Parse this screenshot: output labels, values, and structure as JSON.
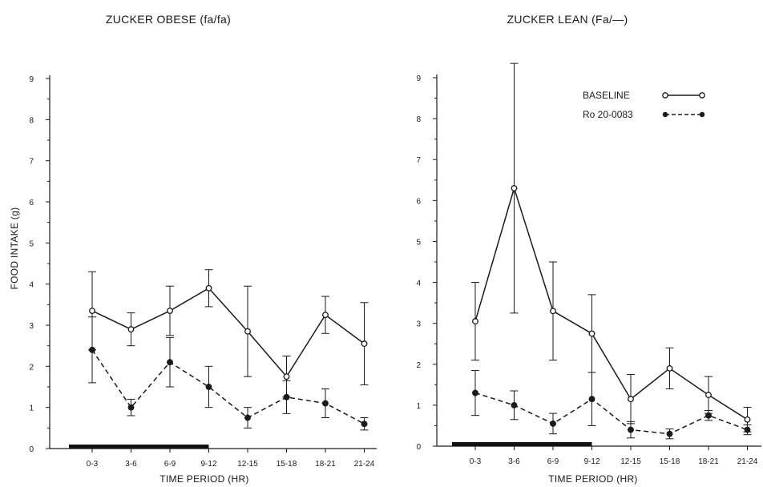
{
  "chart_data": [
    {
      "type": "line",
      "title": "ZUCKER OBESE (fa/fa)",
      "xlabel": "TIME PERIOD (HR)",
      "ylabel": "FOOD INTAKE (g)",
      "ylim": [
        0,
        9
      ],
      "y_ticks": [
        "0",
        "1",
        "2",
        "3",
        "4",
        "5",
        "6",
        "7",
        "8",
        "9"
      ],
      "categories": [
        "0-3",
        "3-6",
        "6-9",
        "9-12",
        "12-15",
        "15-18",
        "18-21",
        "21-24"
      ],
      "dark_period_bar": [
        "0-3",
        "9-12"
      ],
      "series": [
        {
          "name": "BASELINE",
          "style": "solid-open-circle",
          "values": [
            3.35,
            2.9,
            3.35,
            3.9,
            2.85,
            1.75,
            3.25,
            2.55
          ],
          "errors": [
            0.95,
            0.4,
            0.6,
            0.45,
            1.1,
            0.5,
            0.45,
            1.0
          ]
        },
        {
          "name": "Ro 20-0083",
          "style": "dashed-filled-circle",
          "values": [
            2.4,
            1.0,
            2.1,
            1.5,
            0.75,
            1.25,
            1.1,
            0.6
          ],
          "errors": [
            0.8,
            0.2,
            0.6,
            0.5,
            0.25,
            0.4,
            0.35,
            0.15
          ]
        }
      ]
    },
    {
      "type": "line",
      "title": "ZUCKER LEAN (Fa/—)",
      "xlabel": "TIME PERIOD (HR)",
      "ylabel": "",
      "ylim": [
        0,
        9
      ],
      "y_ticks": [
        "0",
        "1",
        "2",
        "3",
        "4",
        "5",
        "6",
        "7",
        "8",
        "9"
      ],
      "categories": [
        "0-3",
        "3-6",
        "6-9",
        "9-12",
        "12-15",
        "15-18",
        "18-21",
        "21-24"
      ],
      "dark_period_bar": [
        "0-3",
        "9-12"
      ],
      "legend": {
        "placement": "top-right"
      },
      "series": [
        {
          "name": "BASELINE",
          "style": "solid-open-circle",
          "values": [
            3.05,
            6.3,
            3.3,
            2.75,
            1.15,
            1.9,
            1.25,
            0.65
          ],
          "errors": [
            0.95,
            3.05,
            1.2,
            0.95,
            0.6,
            0.5,
            0.45,
            0.3
          ]
        },
        {
          "name": "Ro 20-0083",
          "style": "dashed-filled-circle",
          "values": [
            1.3,
            1.0,
            0.55,
            1.15,
            0.4,
            0.3,
            0.75,
            0.4
          ],
          "errors": [
            0.55,
            0.35,
            0.25,
            0.65,
            0.2,
            0.12,
            0.12,
            0.12
          ]
        }
      ]
    }
  ]
}
